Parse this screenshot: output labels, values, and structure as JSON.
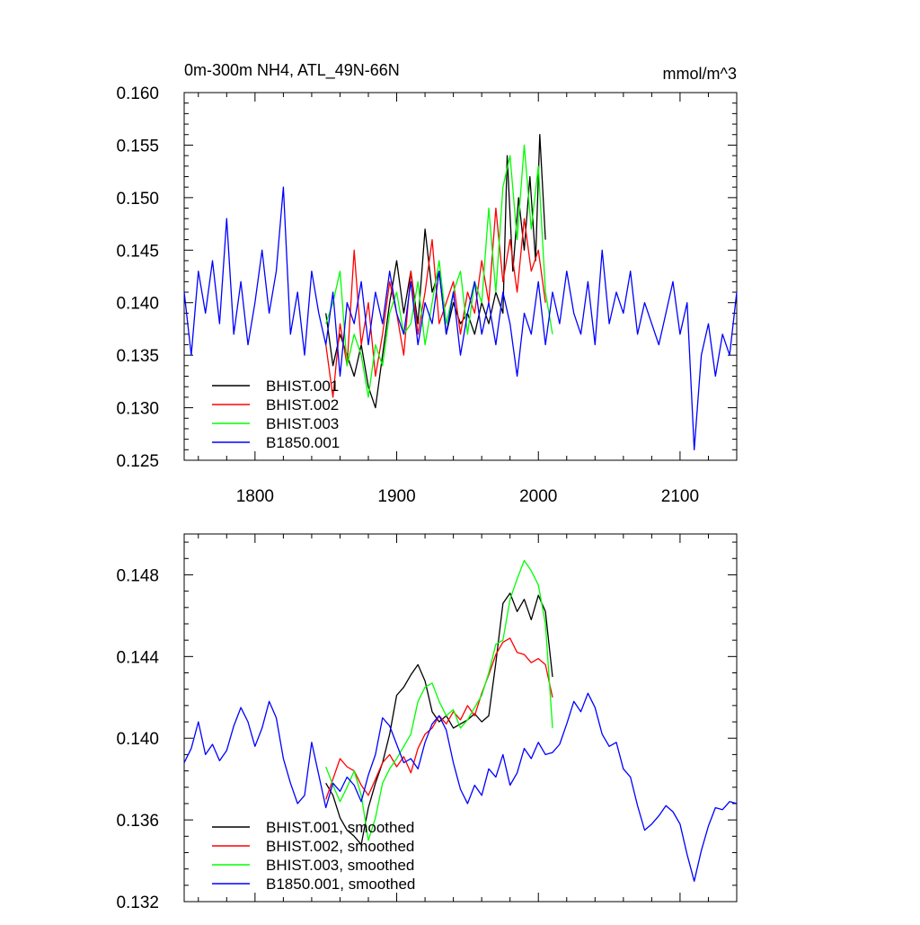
{
  "chart_data": [
    {
      "type": "line",
      "title": "0m-300m NH4, ATL_49N-66N",
      "units": "mmol/m^3",
      "xlim": [
        1750,
        2140
      ],
      "ylim": [
        0.125,
        0.16
      ],
      "xticks": [
        1800,
        1900,
        2000,
        2100
      ],
      "xtick_labels": [
        "1800",
        "1900",
        "2000",
        "2100"
      ],
      "yticks": [
        0.125,
        0.13,
        0.135,
        0.14,
        0.145,
        0.15,
        0.155,
        0.16
      ],
      "ytick_labels": [
        "0.125",
        "0.130",
        "0.135",
        "0.140",
        "0.145",
        "0.150",
        "0.155",
        "0.160"
      ],
      "legend_position": "lower-left",
      "series": [
        {
          "name": "BHIST.001",
          "color": "#000000",
          "x": [
            1850,
            1855,
            1860,
            1865,
            1870,
            1875,
            1880,
            1885,
            1890,
            1895,
            1900,
            1905,
            1910,
            1915,
            1920,
            1925,
            1930,
            1935,
            1940,
            1945,
            1950,
            1955,
            1960,
            1965,
            1970,
            1975,
            1978,
            1982,
            1986,
            1990,
            1994,
            1998,
            2001,
            2005
          ],
          "y": [
            0.139,
            0.134,
            0.137,
            0.135,
            0.133,
            0.136,
            0.132,
            0.13,
            0.135,
            0.14,
            0.144,
            0.139,
            0.143,
            0.138,
            0.147,
            0.141,
            0.143,
            0.137,
            0.14,
            0.138,
            0.139,
            0.137,
            0.14,
            0.138,
            0.141,
            0.139,
            0.154,
            0.143,
            0.15,
            0.145,
            0.152,
            0.144,
            0.156,
            0.146
          ]
        },
        {
          "name": "BHIST.002",
          "color": "#ff0000",
          "x": [
            1850,
            1855,
            1860,
            1865,
            1870,
            1875,
            1880,
            1885,
            1890,
            1895,
            1900,
            1905,
            1910,
            1915,
            1920,
            1925,
            1930,
            1935,
            1940,
            1945,
            1950,
            1955,
            1960,
            1965,
            1970,
            1975,
            1980,
            1985,
            1990,
            1995,
            2000,
            2005
          ],
          "y": [
            0.136,
            0.131,
            0.138,
            0.134,
            0.145,
            0.136,
            0.14,
            0.133,
            0.137,
            0.142,
            0.139,
            0.135,
            0.143,
            0.137,
            0.141,
            0.146,
            0.138,
            0.14,
            0.142,
            0.137,
            0.141,
            0.139,
            0.144,
            0.14,
            0.149,
            0.142,
            0.146,
            0.141,
            0.148,
            0.143,
            0.145,
            0.14
          ]
        },
        {
          "name": "BHIST.003",
          "color": "#00ff00",
          "x": [
            1850,
            1855,
            1860,
            1865,
            1870,
            1875,
            1880,
            1885,
            1890,
            1895,
            1900,
            1905,
            1910,
            1915,
            1920,
            1925,
            1930,
            1935,
            1940,
            1945,
            1950,
            1955,
            1960,
            1965,
            1970,
            1975,
            1980,
            1985,
            1990,
            1995,
            2000,
            2005,
            2010
          ],
          "y": [
            0.138,
            0.14,
            0.143,
            0.134,
            0.137,
            0.135,
            0.131,
            0.136,
            0.134,
            0.139,
            0.141,
            0.137,
            0.138,
            0.142,
            0.136,
            0.14,
            0.144,
            0.138,
            0.141,
            0.143,
            0.137,
            0.142,
            0.14,
            0.149,
            0.141,
            0.151,
            0.154,
            0.146,
            0.155,
            0.147,
            0.153,
            0.141,
            0.137
          ]
        },
        {
          "name": "B1850.001",
          "color": "#0000ff",
          "x": [
            1750,
            1755,
            1760,
            1765,
            1770,
            1775,
            1780,
            1785,
            1790,
            1795,
            1800,
            1805,
            1810,
            1815,
            1820,
            1825,
            1830,
            1835,
            1840,
            1845,
            1850,
            1855,
            1860,
            1865,
            1870,
            1875,
            1880,
            1885,
            1890,
            1895,
            1900,
            1905,
            1910,
            1915,
            1920,
            1925,
            1930,
            1935,
            1940,
            1945,
            1950,
            1955,
            1960,
            1965,
            1970,
            1975,
            1980,
            1985,
            1990,
            1995,
            2000,
            2005,
            2010,
            2015,
            2020,
            2025,
            2030,
            2035,
            2040,
            2045,
            2050,
            2055,
            2060,
            2065,
            2070,
            2075,
            2080,
            2085,
            2090,
            2095,
            2100,
            2105,
            2110,
            2115,
            2120,
            2125,
            2130,
            2135,
            2140
          ],
          "y": [
            0.141,
            0.135,
            0.143,
            0.139,
            0.144,
            0.138,
            0.148,
            0.137,
            0.142,
            0.136,
            0.14,
            0.145,
            0.139,
            0.143,
            0.151,
            0.137,
            0.141,
            0.135,
            0.143,
            0.139,
            0.136,
            0.141,
            0.133,
            0.14,
            0.138,
            0.142,
            0.136,
            0.141,
            0.138,
            0.143,
            0.139,
            0.137,
            0.142,
            0.136,
            0.14,
            0.138,
            0.143,
            0.137,
            0.141,
            0.135,
            0.139,
            0.142,
            0.137,
            0.14,
            0.136,
            0.141,
            0.138,
            0.133,
            0.139,
            0.137,
            0.142,
            0.136,
            0.141,
            0.138,
            0.143,
            0.139,
            0.137,
            0.142,
            0.136,
            0.145,
            0.138,
            0.141,
            0.139,
            0.143,
            0.137,
            0.14,
            0.138,
            0.136,
            0.139,
            0.142,
            0.137,
            0.14,
            0.126,
            0.135,
            0.138,
            0.133,
            0.137,
            0.135,
            0.141
          ]
        }
      ]
    },
    {
      "type": "line",
      "xlim": [
        1750,
        2140
      ],
      "ylim": [
        0.132,
        0.15
      ],
      "xticks": [
        1800,
        1900,
        2000,
        2100
      ],
      "yticks": [
        0.132,
        0.136,
        0.14,
        0.144,
        0.148
      ],
      "ytick_labels": [
        "0.132",
        "0.136",
        "0.140",
        "0.144",
        "0.148"
      ],
      "legend_position": "lower-left",
      "series": [
        {
          "name": "BHIST.001, smoothed",
          "color": "#000000",
          "x": [
            1850,
            1855,
            1860,
            1865,
            1870,
            1875,
            1880,
            1885,
            1890,
            1895,
            1900,
            1905,
            1910,
            1915,
            1920,
            1925,
            1930,
            1935,
            1940,
            1945,
            1950,
            1955,
            1960,
            1965,
            1970,
            1975,
            1980,
            1985,
            1990,
            1995,
            2000,
            2005,
            2010
          ],
          "y": [
            0.1378,
            0.1372,
            0.1361,
            0.1355,
            0.1352,
            0.1348,
            0.1366,
            0.1378,
            0.1388,
            0.1402,
            0.1421,
            0.1425,
            0.1431,
            0.1436,
            0.1428,
            0.1413,
            0.1408,
            0.1411,
            0.1405,
            0.1407,
            0.1409,
            0.1412,
            0.1408,
            0.1411,
            0.1437,
            0.1466,
            0.1471,
            0.1462,
            0.1468,
            0.1458,
            0.147,
            0.1462,
            0.143
          ]
        },
        {
          "name": "BHIST.002, smoothed",
          "color": "#ff0000",
          "x": [
            1850,
            1855,
            1860,
            1865,
            1870,
            1875,
            1880,
            1885,
            1890,
            1895,
            1900,
            1905,
            1910,
            1915,
            1920,
            1925,
            1930,
            1935,
            1940,
            1945,
            1950,
            1955,
            1960,
            1965,
            1970,
            1975,
            1980,
            1985,
            1990,
            1995,
            2000,
            2005,
            2010
          ],
          "y": [
            0.137,
            0.138,
            0.139,
            0.1386,
            0.1384,
            0.1377,
            0.1372,
            0.138,
            0.1388,
            0.1392,
            0.1386,
            0.1391,
            0.1383,
            0.1395,
            0.1402,
            0.1405,
            0.1411,
            0.1407,
            0.1413,
            0.1409,
            0.1416,
            0.1411,
            0.1422,
            0.1431,
            0.1441,
            0.1447,
            0.1449,
            0.1442,
            0.1441,
            0.1437,
            0.1439,
            0.1436,
            0.142
          ]
        },
        {
          "name": "BHIST.003, smoothed",
          "color": "#00ff00",
          "x": [
            1850,
            1855,
            1860,
            1865,
            1870,
            1875,
            1880,
            1885,
            1890,
            1895,
            1900,
            1905,
            1910,
            1915,
            1920,
            1925,
            1930,
            1935,
            1940,
            1945,
            1950,
            1955,
            1960,
            1965,
            1970,
            1975,
            1980,
            1985,
            1990,
            1995,
            2000,
            2005,
            2010
          ],
          "y": [
            0.1386,
            0.1377,
            0.1369,
            0.1376,
            0.1384,
            0.1372,
            0.135,
            0.1361,
            0.1378,
            0.1385,
            0.139,
            0.1396,
            0.1402,
            0.1418,
            0.1425,
            0.1427,
            0.1418,
            0.1411,
            0.1414,
            0.1405,
            0.1409,
            0.1415,
            0.1421,
            0.1432,
            0.1446,
            0.1448,
            0.1468,
            0.1478,
            0.1487,
            0.1482,
            0.1475,
            0.1456,
            0.1405
          ]
        },
        {
          "name": "B1850.001, smoothed",
          "color": "#0000ff",
          "x": [
            1750,
            1755,
            1760,
            1765,
            1770,
            1775,
            1780,
            1785,
            1790,
            1795,
            1800,
            1805,
            1810,
            1815,
            1820,
            1825,
            1830,
            1835,
            1840,
            1845,
            1850,
            1855,
            1860,
            1865,
            1870,
            1875,
            1880,
            1885,
            1890,
            1895,
            1900,
            1905,
            1910,
            1915,
            1920,
            1925,
            1930,
            1935,
            1940,
            1945,
            1950,
            1955,
            1960,
            1965,
            1970,
            1975,
            1980,
            1985,
            1990,
            1995,
            2000,
            2005,
            2010,
            2015,
            2020,
            2025,
            2030,
            2035,
            2040,
            2045,
            2050,
            2055,
            2060,
            2065,
            2070,
            2075,
            2080,
            2085,
            2090,
            2095,
            2100,
            2105,
            2110,
            2115,
            2120,
            2125,
            2130,
            2135,
            2140
          ],
          "y": [
            0.1388,
            0.1395,
            0.1408,
            0.1392,
            0.1397,
            0.1389,
            0.1394,
            0.1406,
            0.1415,
            0.1408,
            0.1396,
            0.1405,
            0.1418,
            0.141,
            0.139,
            0.1378,
            0.1368,
            0.1372,
            0.1398,
            0.1382,
            0.1366,
            0.1378,
            0.1374,
            0.1381,
            0.1377,
            0.1369,
            0.1382,
            0.1392,
            0.141,
            0.1406,
            0.1397,
            0.1388,
            0.139,
            0.1385,
            0.1398,
            0.1407,
            0.1411,
            0.1404,
            0.1388,
            0.1375,
            0.1368,
            0.1377,
            0.1372,
            0.1385,
            0.1381,
            0.1392,
            0.1377,
            0.1383,
            0.1395,
            0.139,
            0.1398,
            0.1392,
            0.1393,
            0.1397,
            0.1407,
            0.1418,
            0.1413,
            0.1422,
            0.1415,
            0.1402,
            0.1396,
            0.1398,
            0.1385,
            0.1381,
            0.1367,
            0.1355,
            0.1358,
            0.1362,
            0.1367,
            0.1364,
            0.1358,
            0.1343,
            0.133,
            0.1345,
            0.1357,
            0.1366,
            0.1365,
            0.1369,
            0.1368
          ]
        }
      ]
    }
  ]
}
